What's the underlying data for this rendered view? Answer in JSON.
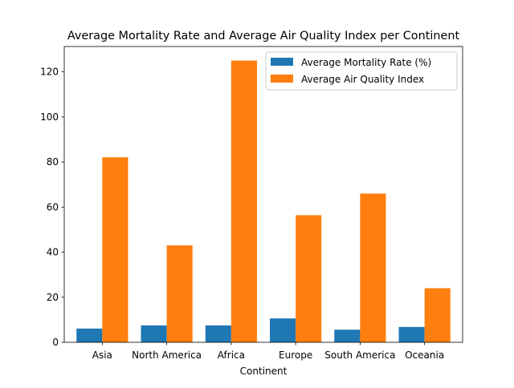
{
  "chart_data": {
    "type": "bar",
    "title": "Average Mortality Rate and Average Air Quality Index per Continent",
    "xlabel": "Continent",
    "ylabel": "",
    "categories": [
      "Asia",
      "North America",
      "Africa",
      "Europe",
      "South America",
      "Oceania"
    ],
    "series": [
      {
        "name": "Average Mortality Rate (%)",
        "color": "#1f77b4",
        "values": [
          6.1,
          7.5,
          7.5,
          10.6,
          5.6,
          6.8
        ]
      },
      {
        "name": "Average Air Quality Index",
        "color": "#ff7f0e",
        "values": [
          82.1,
          43.0,
          125.0,
          56.4,
          66.0,
          24.0
        ]
      }
    ],
    "ylim": [
      0,
      131.25
    ],
    "yticks": [
      0,
      20,
      40,
      60,
      80,
      100,
      120
    ],
    "grid": false,
    "legend_position": "top-right"
  }
}
